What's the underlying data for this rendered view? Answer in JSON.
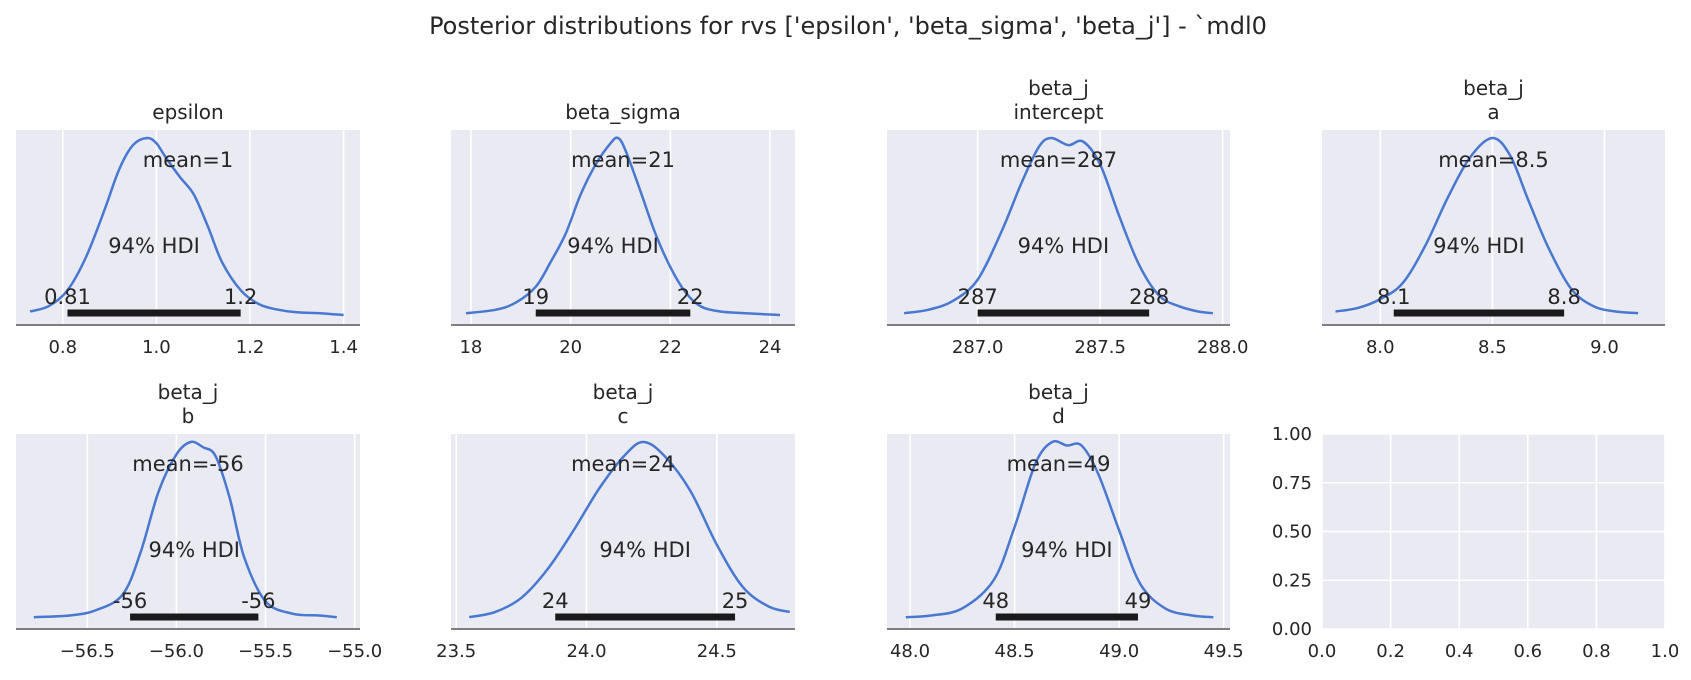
{
  "chart_data": {
    "type": "line",
    "suptitle": "Posterior distributions for rvs ['epsilon', 'beta_sigma', 'beta_j'] - `mdl0",
    "panels": [
      {
        "title": [
          "epsilon"
        ],
        "xticks": [
          "0.8",
          "1.0",
          "1.2",
          "1.4"
        ],
        "xtick_values": [
          0.8,
          1.0,
          1.2,
          1.4
        ],
        "xlim": [
          0.7,
          1.435
        ],
        "x": [
          0.73,
          0.77,
          0.81,
          0.85,
          0.89,
          0.92,
          0.95,
          0.98,
          1.0,
          1.02,
          1.05,
          1.08,
          1.11,
          1.14,
          1.18,
          1.22,
          1.26,
          1.3,
          1.35,
          1.4
        ],
        "density": [
          0.02,
          0.05,
          0.14,
          0.33,
          0.6,
          0.82,
          0.96,
          1.0,
          0.97,
          0.89,
          0.78,
          0.68,
          0.5,
          0.3,
          0.14,
          0.06,
          0.03,
          0.015,
          0.01,
          0.0
        ],
        "mean_label": "mean=1",
        "hdi_label": "94% HDI",
        "hdi": [
          0.81,
          1.18
        ],
        "hdi_labels": [
          "0.81",
          "1.2"
        ]
      },
      {
        "title": [
          "beta_sigma"
        ],
        "xticks": [
          "18",
          "20",
          "22",
          "24"
        ],
        "xtick_values": [
          18,
          20,
          22,
          24
        ],
        "xlim": [
          17.6,
          24.5
        ],
        "x": [
          17.9,
          18.5,
          18.9,
          19.3,
          19.6,
          19.9,
          20.2,
          20.5,
          20.8,
          20.95,
          21.1,
          21.4,
          21.7,
          22.0,
          22.3,
          22.6,
          23.0,
          23.5,
          24.2
        ],
        "density": [
          0.01,
          0.03,
          0.07,
          0.16,
          0.3,
          0.46,
          0.68,
          0.85,
          0.97,
          1.0,
          0.93,
          0.7,
          0.46,
          0.27,
          0.13,
          0.05,
          0.02,
          0.01,
          0.0
        ],
        "mean_label": "mean=21",
        "hdi_label": "94% HDI",
        "hdi": [
          19.3,
          22.4
        ],
        "hdi_labels": [
          "19",
          "22"
        ]
      },
      {
        "title": [
          "beta_j",
          "intercept"
        ],
        "xticks": [
          "287.0",
          "287.5",
          "288.0"
        ],
        "xtick_values": [
          287.0,
          287.5,
          288.0
        ],
        "xlim": [
          286.63,
          288.03
        ],
        "x": [
          286.7,
          286.8,
          286.9,
          287.0,
          287.1,
          287.18,
          287.25,
          287.3,
          287.37,
          287.43,
          287.5,
          287.58,
          287.66,
          287.74,
          287.82,
          287.9,
          287.96
        ],
        "density": [
          0.01,
          0.03,
          0.08,
          0.2,
          0.48,
          0.75,
          0.95,
          1.0,
          0.96,
          0.98,
          0.85,
          0.55,
          0.28,
          0.11,
          0.05,
          0.02,
          0.01
        ],
        "mean_label": "mean=287",
        "hdi_label": "94% HDI",
        "hdi": [
          287.0,
          287.7
        ],
        "hdi_labels": [
          "287",
          "288"
        ]
      },
      {
        "title": [
          "beta_j",
          "a"
        ],
        "xticks": [
          "8.0",
          "8.5",
          "9.0"
        ],
        "xtick_values": [
          8.0,
          8.5,
          9.0
        ],
        "xlim": [
          7.74,
          9.27
        ],
        "x": [
          7.8,
          7.9,
          8.0,
          8.1,
          8.2,
          8.3,
          8.4,
          8.5,
          8.58,
          8.66,
          8.75,
          8.85,
          8.95,
          9.05,
          9.15
        ],
        "density": [
          0.02,
          0.04,
          0.09,
          0.18,
          0.39,
          0.66,
          0.89,
          1.0,
          0.9,
          0.65,
          0.38,
          0.15,
          0.05,
          0.02,
          0.01
        ],
        "mean_label": "mean=8.5",
        "hdi_label": "94% HDI",
        "hdi": [
          8.06,
          8.82
        ],
        "hdi_labels": [
          "8.1",
          "8.8"
        ]
      },
      {
        "title": [
          "beta_j",
          "b"
        ],
        "xticks": [
          "−56.5",
          "−56.0",
          "−55.5",
          "−55.0"
        ],
        "xtick_values": [
          -56.5,
          -56.0,
          -55.5,
          -55.0
        ],
        "xlim": [
          -56.9,
          -54.97
        ],
        "x": [
          -56.8,
          -56.6,
          -56.45,
          -56.3,
          -56.2,
          -56.1,
          -56.0,
          -55.92,
          -55.85,
          -55.78,
          -55.7,
          -55.62,
          -55.5,
          -55.35,
          -55.2,
          -55.1
        ],
        "density": [
          0.01,
          0.02,
          0.05,
          0.14,
          0.38,
          0.72,
          0.93,
          1.0,
          0.97,
          0.92,
          0.68,
          0.35,
          0.1,
          0.03,
          0.02,
          0.01
        ],
        "mean_label": "mean=-56",
        "hdi_label": "94% HDI",
        "hdi": [
          -56.26,
          -55.54
        ],
        "hdi_labels": [
          "-56",
          "-56"
        ]
      },
      {
        "title": [
          "beta_j",
          "c"
        ],
        "xticks": [
          "23.5",
          "24.0",
          "24.5"
        ],
        "xtick_values": [
          23.5,
          24.0,
          24.5
        ],
        "xlim": [
          23.48,
          24.8
        ],
        "x": [
          23.55,
          23.65,
          23.75,
          23.85,
          23.95,
          24.05,
          24.15,
          24.22,
          24.3,
          24.4,
          24.5,
          24.6,
          24.7,
          24.78
        ],
        "density": [
          0.01,
          0.04,
          0.12,
          0.28,
          0.5,
          0.74,
          0.93,
          1.0,
          0.92,
          0.72,
          0.42,
          0.18,
          0.07,
          0.04
        ],
        "mean_label": "mean=24",
        "hdi_label": "94% HDI",
        "hdi": [
          23.88,
          24.57
        ],
        "hdi_labels": [
          "24",
          "25"
        ]
      },
      {
        "title": [
          "beta_j",
          "d"
        ],
        "xticks": [
          "48.0",
          "48.5",
          "49.0",
          "49.5"
        ],
        "xtick_values": [
          48.0,
          48.5,
          49.0,
          49.5
        ],
        "xlim": [
          47.89,
          49.53
        ],
        "x": [
          47.98,
          48.1,
          48.25,
          48.4,
          48.5,
          48.6,
          48.68,
          48.75,
          48.82,
          48.9,
          49.0,
          49.1,
          49.22,
          49.35,
          49.45
        ],
        "density": [
          0.01,
          0.02,
          0.06,
          0.22,
          0.52,
          0.88,
          1.0,
          0.98,
          0.98,
          0.82,
          0.5,
          0.2,
          0.06,
          0.02,
          0.01
        ],
        "mean_label": "mean=49",
        "hdi_label": "94% HDI",
        "hdi": [
          48.41,
          49.09
        ],
        "hdi_labels": [
          "48",
          "49"
        ]
      }
    ],
    "empty_panel": {
      "xticks": [
        "0.0",
        "0.2",
        "0.4",
        "0.6",
        "0.8",
        "1.0"
      ],
      "yticks": [
        "0.00",
        "0.25",
        "0.50",
        "0.75",
        "1.00"
      ],
      "xlim": [
        0,
        1
      ],
      "ylim": [
        0,
        1
      ]
    }
  }
}
